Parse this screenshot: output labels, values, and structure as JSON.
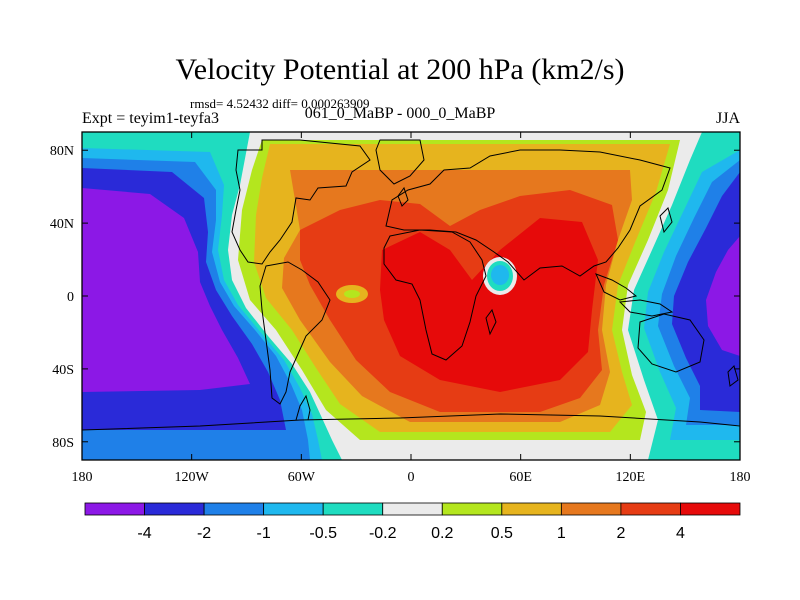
{
  "header": {
    "title": "Velocity Potential at 200 hPa (km2/s)",
    "stats": "rmsd= 4.52432 diff= 0.000263909",
    "left_label": "Expt = teyim1-teyfa3",
    "center_label": "061_0_MaBP - 000_0_MaBP",
    "right_label": "JJA"
  },
  "chart_data": {
    "type": "heatmap",
    "title": "Velocity Potential at 200 hPa (km2/s)",
    "projection": "cylindrical equidistant",
    "xlim": [
      -180,
      180
    ],
    "ylim": [
      -90,
      90
    ],
    "x_ticks": [
      {
        "value": -180,
        "label": "180"
      },
      {
        "value": -120,
        "label": "120W"
      },
      {
        "value": -60,
        "label": "60W"
      },
      {
        "value": 0,
        "label": "0"
      },
      {
        "value": 60,
        "label": "60E"
      },
      {
        "value": 120,
        "label": "120E"
      },
      {
        "value": 180,
        "label": "180"
      }
    ],
    "y_ticks": [
      {
        "value": 80,
        "label": "80N"
      },
      {
        "value": 40,
        "label": "40N"
      },
      {
        "value": 0,
        "label": "0"
      },
      {
        "value": -40,
        "label": "40S"
      },
      {
        "value": -80,
        "label": "80S"
      }
    ],
    "colorbar": {
      "levels": [
        "-4",
        "-2",
        "-1",
        "-0.5",
        "-0.2",
        "0.2",
        "0.5",
        "1",
        "2",
        "4"
      ],
      "colors": [
        "#8c18e6",
        "#2a2ad8",
        "#1f80e8",
        "#1fb8ee",
        "#1fdcc0",
        "#ebebeb",
        "#b4e61e",
        "#e6b41e",
        "#e6781e",
        "#e63c14",
        "#e60a0a"
      ]
    },
    "field_features": [
      {
        "name": "Pacific minimum",
        "lon": -155,
        "lat": 0,
        "value_range": "< -4"
      },
      {
        "name": "West Pacific minimum",
        "lon": 178,
        "lat": 0,
        "value_range": "< -4"
      },
      {
        "name": "Africa-Asia maximum",
        "lon": 30,
        "lat": 0,
        "value_range": "> 4"
      },
      {
        "name": "Arabian Sea local minimum",
        "lon": 50,
        "lat": 8,
        "value_range": "-2 to -0.5"
      },
      {
        "name": "Atlantic local minimum",
        "lon": -35,
        "lat": 0,
        "value_range": "1 to 2"
      }
    ]
  }
}
